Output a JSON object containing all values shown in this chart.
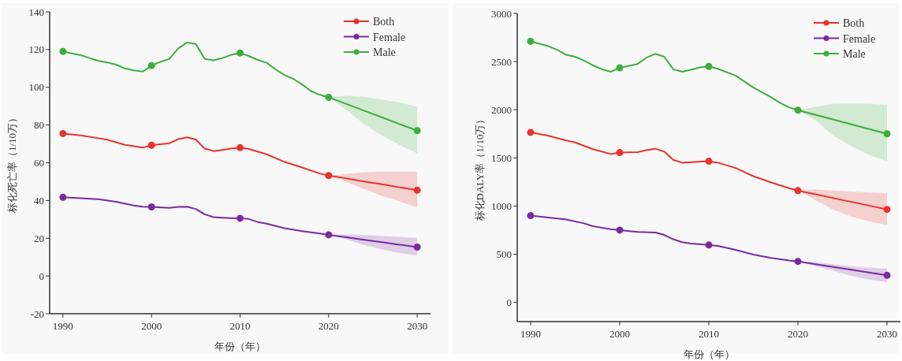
{
  "chart_data": [
    {
      "type": "line",
      "xlabel": "年份（年）",
      "ylabel": "标化死亡率（1/10万）",
      "xlim": [
        1988.5,
        2031.5
      ],
      "xticks": [
        1990,
        2000,
        2010,
        2020,
        2030
      ],
      "ylim": [
        -20,
        140
      ],
      "yticks": [
        -20,
        0,
        20,
        40,
        60,
        80,
        100,
        120,
        140
      ],
      "legend": "top right",
      "series": [
        {
          "name": "Both",
          "color": "#e8322c",
          "x": [
            1990,
            1992,
            1994,
            1995,
            1997,
            1999,
            2000,
            2002,
            2003,
            2004,
            2005,
            2006,
            2007,
            2008,
            2009,
            2010,
            2011,
            2013,
            2015,
            2017,
            2019,
            2020,
            2022,
            2024,
            2026,
            2028,
            2030
          ],
          "values": [
            75.5,
            74.5,
            73,
            72.2,
            69.5,
            68,
            69.3,
            70.3,
            72.5,
            73.5,
            72.3,
            67.5,
            66.2,
            66.8,
            67.5,
            68,
            67.3,
            64.5,
            60.5,
            57.5,
            54.3,
            53.2,
            51.7,
            50.1,
            48.6,
            47,
            45.5
          ],
          "lower": [
            null,
            null,
            null,
            null,
            null,
            null,
            null,
            null,
            null,
            null,
            null,
            null,
            null,
            null,
            null,
            null,
            null,
            null,
            null,
            null,
            null,
            53.2,
            50,
            46,
            42.5,
            39.5,
            36.3
          ],
          "upper": [
            null,
            null,
            null,
            null,
            null,
            null,
            null,
            null,
            null,
            null,
            null,
            null,
            null,
            null,
            null,
            null,
            null,
            null,
            null,
            null,
            null,
            53.2,
            54,
            55,
            55.3,
            55.3,
            55.3
          ]
        },
        {
          "name": "Female",
          "color": "#7b2a9e",
          "x": [
            1990,
            1992,
            1994,
            1996,
            1998,
            1999,
            2000,
            2002,
            2003,
            2004,
            2005,
            2006,
            2007,
            2008,
            2009,
            2010,
            2011,
            2012,
            2013,
            2015,
            2017,
            2019,
            2020,
            2022,
            2024,
            2026,
            2028,
            2030
          ],
          "values": [
            41.7,
            41.2,
            40.7,
            39.3,
            37.3,
            36.7,
            36.6,
            36.1,
            36.6,
            36.7,
            35.5,
            32.7,
            31.2,
            30.9,
            30.7,
            30.6,
            30.2,
            28.6,
            27.7,
            25.3,
            23.8,
            22.5,
            21.8,
            20.5,
            19.2,
            17.9,
            16.6,
            15.3
          ],
          "lower": [
            null,
            null,
            null,
            null,
            null,
            null,
            null,
            null,
            null,
            null,
            null,
            null,
            null,
            null,
            null,
            null,
            null,
            null,
            null,
            null,
            null,
            null,
            21.8,
            19.5,
            16.5,
            14,
            12.2,
            10.8
          ],
          "upper": [
            null,
            null,
            null,
            null,
            null,
            null,
            null,
            null,
            null,
            null,
            null,
            null,
            null,
            null,
            null,
            null,
            null,
            null,
            null,
            null,
            null,
            null,
            21.8,
            22,
            21.8,
            21.2,
            20.7,
            20.3
          ]
        },
        {
          "name": "Male",
          "color": "#3cae3c",
          "x": [
            1990,
            1991,
            1992,
            1993,
            1994,
            1995,
            1996,
            1997,
            1998,
            1999,
            2000,
            2001,
            2002,
            2003,
            2004,
            2005,
            2006,
            2007,
            2008,
            2009,
            2010,
            2011,
            2012,
            2013,
            2014,
            2015,
            2016,
            2017,
            2018,
            2019,
            2020,
            2022,
            2024,
            2026,
            2028,
            2030
          ],
          "values": [
            119,
            118,
            117,
            115.5,
            114,
            113.2,
            112,
            110,
            109,
            108.3,
            111.5,
            113.5,
            115,
            120.5,
            123.7,
            123,
            115,
            114.3,
            115.5,
            117.2,
            118.2,
            116.5,
            114.5,
            113,
            109.5,
            106.5,
            104.5,
            101.5,
            98,
            96,
            94.7,
            91.2,
            87.6,
            84.1,
            80.5,
            77
          ],
          "lower": [
            null,
            null,
            null,
            null,
            null,
            null,
            null,
            null,
            null,
            null,
            null,
            null,
            null,
            null,
            null,
            null,
            null,
            null,
            null,
            null,
            null,
            null,
            null,
            null,
            null,
            null,
            null,
            null,
            null,
            null,
            94.7,
            88,
            80.5,
            74.5,
            69.5,
            65
          ],
          "upper": [
            null,
            null,
            null,
            null,
            null,
            null,
            null,
            null,
            null,
            null,
            null,
            null,
            null,
            null,
            null,
            null,
            null,
            null,
            null,
            null,
            null,
            null,
            null,
            null,
            null,
            null,
            null,
            null,
            null,
            null,
            94.7,
            95.5,
            95,
            93.5,
            92,
            89.7
          ]
        },
        {
          "type": "scatter",
          "marker": "circle",
          "color": "#e8322c",
          "x": [
            1990,
            2000,
            2010,
            2020,
            2030
          ],
          "values": [
            75.5,
            69.3,
            68,
            53.2,
            45.5
          ]
        },
        {
          "type": "scatter",
          "marker": "circle",
          "color": "#7b2a9e",
          "x": [
            1990,
            2000,
            2010,
            2020,
            2030
          ],
          "values": [
            41.7,
            36.6,
            30.6,
            21.8,
            15.3
          ]
        },
        {
          "type": "scatter",
          "marker": "circle",
          "color": "#3cae3c",
          "x": [
            1990,
            2000,
            2010,
            2020,
            2030
          ],
          "values": [
            119,
            111.5,
            118.2,
            94.7,
            77
          ]
        }
      ]
    },
    {
      "type": "line",
      "xlabel": "年份（年）",
      "ylabel": "标化DALY率（1/10万）",
      "xlim": [
        1988.5,
        2031.5
      ],
      "xticks": [
        1990,
        2000,
        2010,
        2020,
        2030
      ],
      "ylim": [
        -200,
        3000
      ],
      "yticks": [
        0,
        500,
        1000,
        1500,
        2000,
        2500,
        3000
      ],
      "legend": "top right",
      "series": [
        {
          "name": "Both",
          "color": "#e8322c",
          "x": [
            1990,
            1992,
            1994,
            1995,
            1997,
            1999,
            2000,
            2002,
            2003,
            2004,
            2005,
            2006,
            2007,
            2008,
            2010,
            2011,
            2013,
            2015,
            2017,
            2019,
            2020,
            2022,
            2024,
            2026,
            2028,
            2030
          ],
          "values": [
            1765,
            1730,
            1680,
            1660,
            1590,
            1540,
            1555,
            1560,
            1580,
            1595,
            1565,
            1480,
            1450,
            1455,
            1465,
            1450,
            1395,
            1310,
            1245,
            1185,
            1160,
            1121,
            1082,
            1043,
            1004,
            965
          ],
          "lower": [
            null,
            null,
            null,
            null,
            null,
            null,
            null,
            null,
            null,
            null,
            null,
            null,
            null,
            null,
            null,
            null,
            null,
            null,
            null,
            null,
            1160,
            1060,
            960,
            890,
            840,
            805
          ],
          "upper": [
            null,
            null,
            null,
            null,
            null,
            null,
            null,
            null,
            null,
            null,
            null,
            null,
            null,
            null,
            null,
            null,
            null,
            null,
            null,
            null,
            1160,
            1170,
            1160,
            1150,
            1140,
            1135
          ]
        },
        {
          "name": "Female",
          "color": "#7b2a9e",
          "x": [
            1990,
            1992,
            1994,
            1996,
            1997,
            1999,
            2000,
            2002,
            2004,
            2005,
            2006,
            2007,
            2008,
            2010,
            2011,
            2013,
            2015,
            2017,
            2019,
            2020,
            2022,
            2024,
            2026,
            2028,
            2030
          ],
          "values": [
            900,
            880,
            860,
            820,
            790,
            760,
            750,
            730,
            725,
            700,
            655,
            625,
            610,
            595,
            585,
            545,
            495,
            460,
            435,
            425,
            396,
            367,
            338,
            309,
            280
          ],
          "lower": [
            null,
            null,
            null,
            null,
            null,
            null,
            null,
            null,
            null,
            null,
            null,
            null,
            null,
            null,
            null,
            null,
            null,
            null,
            null,
            425,
            375,
            325,
            275,
            235,
            210
          ],
          "upper": [
            null,
            null,
            null,
            null,
            null,
            null,
            null,
            null,
            null,
            null,
            null,
            null,
            null,
            null,
            null,
            null,
            null,
            null,
            null,
            425,
            415,
            395,
            375,
            360,
            350
          ]
        },
        {
          "name": "Male",
          "color": "#3cae3c",
          "x": [
            1990,
            1992,
            1993,
            1994,
            1995,
            1996,
            1997,
            1998,
            1999,
            2000,
            2002,
            2003,
            2004,
            2005,
            2006,
            2007,
            2008,
            2009,
            2010,
            2011,
            2013,
            2015,
            2017,
            2018,
            2019,
            2020,
            2022,
            2024,
            2026,
            2028,
            2030
          ],
          "values": [
            2710,
            2660,
            2620,
            2570,
            2550,
            2510,
            2460,
            2420,
            2395,
            2435,
            2475,
            2540,
            2580,
            2550,
            2420,
            2395,
            2415,
            2440,
            2450,
            2425,
            2355,
            2230,
            2130,
            2070,
            2025,
            1995,
            1946,
            1897,
            1848,
            1799,
            1750
          ],
          "lower": [
            null,
            null,
            null,
            null,
            null,
            null,
            null,
            null,
            null,
            null,
            null,
            null,
            null,
            null,
            null,
            null,
            null,
            null,
            null,
            null,
            null,
            null,
            null,
            null,
            null,
            1995,
            1890,
            1730,
            1620,
            1530,
            1465
          ],
          "upper": [
            null,
            null,
            null,
            null,
            null,
            null,
            null,
            null,
            null,
            null,
            null,
            null,
            null,
            null,
            null,
            null,
            null,
            null,
            null,
            null,
            null,
            null,
            null,
            null,
            null,
            1995,
            2030,
            2060,
            2065,
            2060,
            2050
          ]
        },
        {
          "type": "scatter",
          "marker": "circle",
          "color": "#e8322c",
          "x": [
            1990,
            2000,
            2010,
            2020,
            2030
          ],
          "values": [
            1765,
            1555,
            1465,
            1160,
            965
          ]
        },
        {
          "type": "scatter",
          "marker": "circle",
          "color": "#7b2a9e",
          "x": [
            1990,
            2000,
            2010,
            2020,
            2030
          ],
          "values": [
            900,
            750,
            595,
            425,
            280
          ]
        },
        {
          "type": "scatter",
          "marker": "circle",
          "color": "#3cae3c",
          "x": [
            1990,
            2000,
            2010,
            2020,
            2030
          ],
          "values": [
            2710,
            2435,
            2450,
            1995,
            1750
          ]
        }
      ]
    }
  ]
}
